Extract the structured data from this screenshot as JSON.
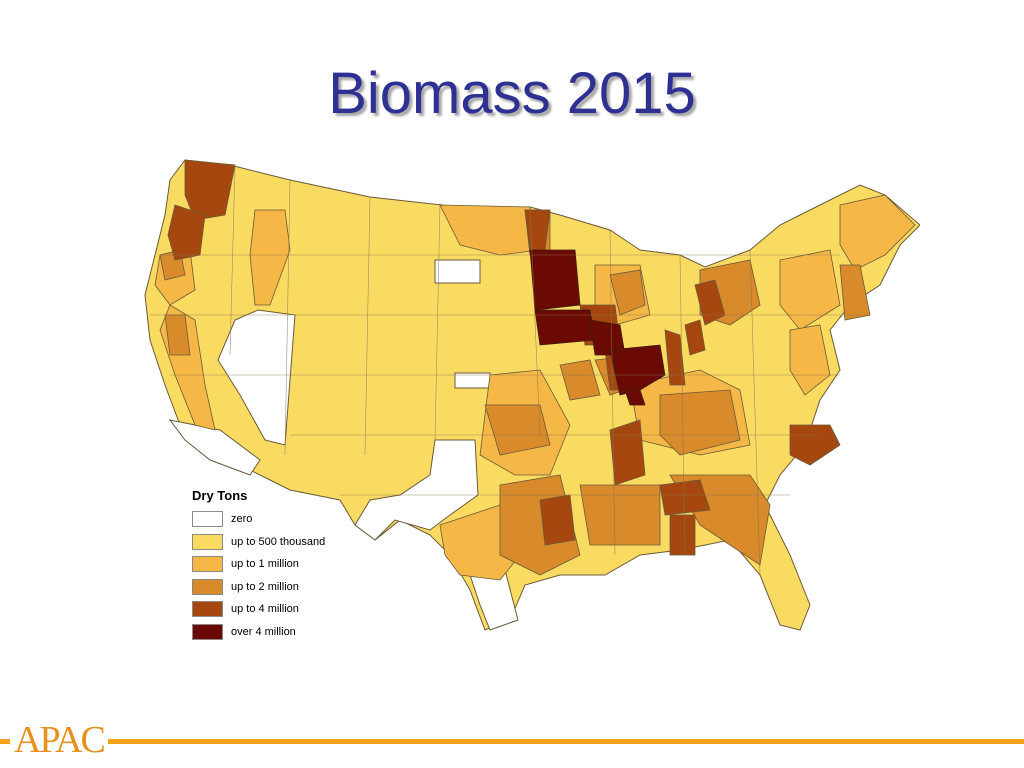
{
  "slide": {
    "title": "Biomass 2015"
  },
  "legend": {
    "title": "Dry Tons",
    "items": [
      {
        "label": "zero",
        "color": "#ffffff"
      },
      {
        "label": "up to 500 thousand",
        "color": "#fadb62"
      },
      {
        "label": "up to 1 million",
        "color": "#f5b847"
      },
      {
        "label": "up to 2 million",
        "color": "#d98a2a"
      },
      {
        "label": "up to 4 million",
        "color": "#a6470f"
      },
      {
        "label": "over 4 million",
        "color": "#6b0a02"
      }
    ]
  },
  "map": {
    "border_color": "#5a4a30",
    "background_fill": "#fadb62"
  },
  "footer": {
    "logo_text": "APAC",
    "line_color": "#f5a21b"
  }
}
